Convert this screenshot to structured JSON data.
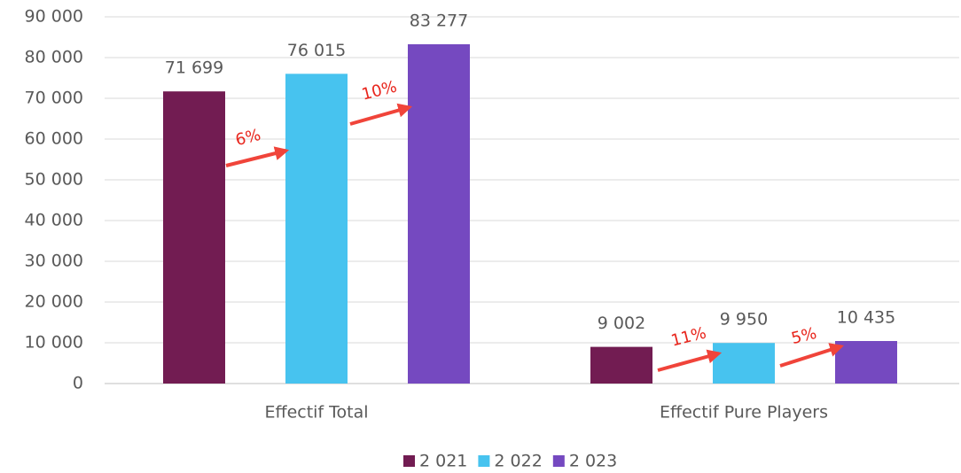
{
  "chart_data": {
    "type": "bar",
    "categories": [
      "Effectif Total",
      "Effectif Pure Players"
    ],
    "series": [
      {
        "name": "2 021",
        "color": "#721c52",
        "values": [
          71699,
          9002
        ],
        "value_labels": [
          "71 699",
          "9 002"
        ]
      },
      {
        "name": "2 022",
        "color": "#47c3ef",
        "values": [
          76015,
          9950
        ],
        "value_labels": [
          "76 015",
          "9 950"
        ]
      },
      {
        "name": "2 023",
        "color": "#7549c0",
        "values": [
          83277,
          10435
        ],
        "value_labels": [
          "83 277",
          "10 435"
        ]
      }
    ],
    "ylim": [
      0,
      90000
    ],
    "yticks": [
      0,
      {
        "value": 10000,
        "label": "10 000"
      },
      {
        "value": 20000,
        "label": "20 000"
      },
      {
        "value": 30000,
        "label": "30 000"
      },
      {
        "value": 40000,
        "label": "40 000"
      },
      {
        "value": 50000,
        "label": "50 000"
      },
      {
        "value": 60000,
        "label": "60 000"
      },
      {
        "value": 70000,
        "label": "70 000"
      },
      {
        "value": 80000,
        "label": "80 000"
      },
      {
        "value": 90000,
        "label": "90 000"
      }
    ],
    "grid": true,
    "legend": "bottom",
    "annotations": [
      "6%",
      "10%",
      "11%",
      "5%"
    ]
  }
}
